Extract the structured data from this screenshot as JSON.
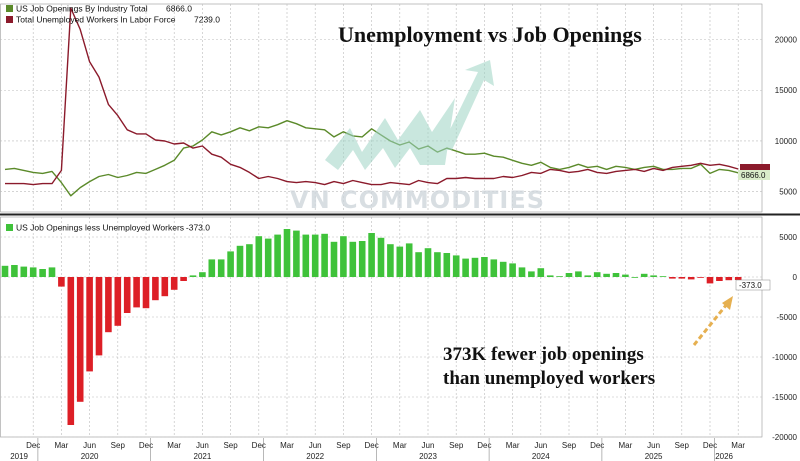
{
  "chart_data": [
    {
      "type": "line",
      "title": "Unemployment vs Job Openings",
      "ylim": [
        3000,
        23500
      ],
      "yticks": [
        5000,
        10000,
        15000,
        20000
      ],
      "grid": true,
      "legend_position": "top-left",
      "series": [
        {
          "name": "US Job Openings By Industry Total",
          "legend_value": "6866.0",
          "color": "#5b8a2a",
          "x": [
            "2019-09",
            "2019-10",
            "2019-11",
            "2019-12",
            "2020-01",
            "2020-02",
            "2020-03",
            "2020-04",
            "2020-05",
            "2020-06",
            "2020-07",
            "2020-08",
            "2020-09",
            "2020-10",
            "2020-11",
            "2020-12",
            "2021-01",
            "2021-02",
            "2021-03",
            "2021-04",
            "2021-05",
            "2021-06",
            "2021-07",
            "2021-08",
            "2021-09",
            "2021-10",
            "2021-11",
            "2021-12",
            "2022-01",
            "2022-02",
            "2022-03",
            "2022-04",
            "2022-05",
            "2022-06",
            "2022-07",
            "2022-08",
            "2022-09",
            "2022-10",
            "2022-11",
            "2022-12",
            "2023-01",
            "2023-02",
            "2023-03",
            "2023-04",
            "2023-05",
            "2023-06",
            "2023-07",
            "2023-08",
            "2023-09",
            "2023-10",
            "2023-11",
            "2023-12",
            "2024-01",
            "2024-02",
            "2024-03",
            "2024-04",
            "2024-05",
            "2024-06",
            "2024-07",
            "2024-08",
            "2024-09",
            "2024-10",
            "2024-11",
            "2024-12",
            "2025-01",
            "2025-02",
            "2025-03",
            "2025-04",
            "2025-05",
            "2025-06",
            "2025-07",
            "2025-08",
            "2025-09",
            "2025-10",
            "2025-11",
            "2025-12",
            "2026-01",
            "2026-02",
            "2026-03"
          ],
          "values": [
            7200,
            7300,
            7100,
            6900,
            6800,
            7000,
            5900,
            4600,
            5400,
            6000,
            6500,
            6700,
            6400,
            6600,
            6900,
            6800,
            7200,
            7600,
            8100,
            9300,
            9500,
            10100,
            10900,
            10600,
            10900,
            11300,
            11000,
            11400,
            11300,
            11600,
            12000,
            11700,
            11300,
            11200,
            11100,
            10400,
            10900,
            10500,
            10400,
            11200,
            10600,
            10000,
            9600,
            9900,
            9200,
            9500,
            8900,
            9300,
            9000,
            8700,
            8700,
            8800,
            8500,
            8400,
            8100,
            7800,
            7600,
            7900,
            7400,
            7200,
            7400,
            7700,
            7400,
            7500,
            7200,
            7500,
            7400,
            7200,
            7400,
            7500,
            7200,
            7200,
            7300,
            7300,
            7700,
            6800,
            7200,
            7100,
            6866
          ]
        },
        {
          "name": "Total Unemployed Workers In Labor Force",
          "legend_value": "7239.0",
          "color": "#8b1a2b",
          "x": [
            "2019-09",
            "2019-10",
            "2019-11",
            "2019-12",
            "2020-01",
            "2020-02",
            "2020-03",
            "2020-04",
            "2020-05",
            "2020-06",
            "2020-07",
            "2020-08",
            "2020-09",
            "2020-10",
            "2020-11",
            "2020-12",
            "2021-01",
            "2021-02",
            "2021-03",
            "2021-04",
            "2021-05",
            "2021-06",
            "2021-07",
            "2021-08",
            "2021-09",
            "2021-10",
            "2021-11",
            "2021-12",
            "2022-01",
            "2022-02",
            "2022-03",
            "2022-04",
            "2022-05",
            "2022-06",
            "2022-07",
            "2022-08",
            "2022-09",
            "2022-10",
            "2022-11",
            "2022-12",
            "2023-01",
            "2023-02",
            "2023-03",
            "2023-04",
            "2023-05",
            "2023-06",
            "2023-07",
            "2023-08",
            "2023-09",
            "2023-10",
            "2023-11",
            "2023-12",
            "2024-01",
            "2024-02",
            "2024-03",
            "2024-04",
            "2024-05",
            "2024-06",
            "2024-07",
            "2024-08",
            "2024-09",
            "2024-10",
            "2024-11",
            "2024-12",
            "2025-01",
            "2025-02",
            "2025-03",
            "2025-04",
            "2025-05",
            "2025-06",
            "2025-07",
            "2025-08",
            "2025-09",
            "2025-10",
            "2025-11",
            "2025-12",
            "2026-01",
            "2026-02",
            "2026-03"
          ],
          "values": [
            5800,
            5800,
            5800,
            5700,
            5800,
            5800,
            7100,
            23100,
            21000,
            17800,
            16300,
            13600,
            12500,
            11100,
            10700,
            10700,
            10100,
            10000,
            9700,
            9800,
            9300,
            9500,
            8700,
            8400,
            7700,
            7400,
            6900,
            6300,
            6500,
            6300,
            6000,
            5900,
            6000,
            5900,
            5700,
            6000,
            5800,
            6100,
            5900,
            5700,
            5700,
            5900,
            5800,
            5700,
            6100,
            5900,
            5800,
            6300,
            6300,
            6400,
            6300,
            6300,
            6300,
            6500,
            6400,
            6600,
            6900,
            6800,
            7200,
            7100,
            6900,
            7000,
            7200,
            6900,
            6800,
            7000,
            7100,
            7200,
            7000,
            7300,
            7100,
            7400,
            7500,
            7600,
            7800,
            7600,
            7700,
            7500,
            7239
          ]
        }
      ]
    },
    {
      "type": "bar",
      "title": "",
      "ylim": [
        -20000,
        7500
      ],
      "yticks": [
        5000,
        0,
        -5000,
        -10000,
        -15000,
        -20000
      ],
      "grid": true,
      "legend_position": "top-left",
      "positive_color": "#3fc23a",
      "negative_color": "#dd1f26",
      "series": [
        {
          "name": "US Job Openings less Unemployed Workers",
          "legend_value": "-373.0",
          "x": [
            "2019-09",
            "2019-10",
            "2019-11",
            "2019-12",
            "2020-01",
            "2020-02",
            "2020-03",
            "2020-04",
            "2020-05",
            "2020-06",
            "2020-07",
            "2020-08",
            "2020-09",
            "2020-10",
            "2020-11",
            "2020-12",
            "2021-01",
            "2021-02",
            "2021-03",
            "2021-04",
            "2021-05",
            "2021-06",
            "2021-07",
            "2021-08",
            "2021-09",
            "2021-10",
            "2021-11",
            "2021-12",
            "2022-01",
            "2022-02",
            "2022-03",
            "2022-04",
            "2022-05",
            "2022-06",
            "2022-07",
            "2022-08",
            "2022-09",
            "2022-10",
            "2022-11",
            "2022-12",
            "2023-01",
            "2023-02",
            "2023-03",
            "2023-04",
            "2023-05",
            "2023-06",
            "2023-07",
            "2023-08",
            "2023-09",
            "2023-10",
            "2023-11",
            "2023-12",
            "2024-01",
            "2024-02",
            "2024-03",
            "2024-04",
            "2024-05",
            "2024-06",
            "2024-07",
            "2024-08",
            "2024-09",
            "2024-10",
            "2024-11",
            "2024-12",
            "2025-01",
            "2025-02",
            "2025-03",
            "2025-04",
            "2025-05",
            "2025-06",
            "2025-07",
            "2025-08",
            "2025-09",
            "2025-10",
            "2025-11",
            "2025-12",
            "2026-01",
            "2026-02",
            "2026-03"
          ],
          "values": [
            1400,
            1500,
            1300,
            1200,
            1000,
            1200,
            -1200,
            -18500,
            -15600,
            -11800,
            -9800,
            -6900,
            -6100,
            -4500,
            -3800,
            -3900,
            -2900,
            -2400,
            -1600,
            -500,
            200,
            600,
            2200,
            2200,
            3200,
            3900,
            4100,
            5100,
            4800,
            5300,
            6000,
            5800,
            5300,
            5300,
            5400,
            4400,
            5100,
            4400,
            4500,
            5500,
            4900,
            4100,
            3800,
            4200,
            3100,
            3600,
            3100,
            3000,
            2700,
            2300,
            2400,
            2500,
            2200,
            1900,
            1700,
            1200,
            700,
            1100,
            200,
            100,
            500,
            700,
            200,
            600,
            400,
            500,
            300,
            0,
            400,
            200,
            100,
            -200,
            -200,
            -300,
            -100,
            -800,
            -500,
            -400,
            -373
          ]
        }
      ]
    }
  ],
  "x_axis": {
    "month_labels": [
      "Dec",
      "Mar",
      "Jun",
      "Sep",
      "Dec",
      "Mar",
      "Jun",
      "Sep",
      "Dec",
      "Mar",
      "Jun",
      "Sep",
      "Dec",
      "Mar",
      "Jun",
      "Sep",
      "Dec",
      "Mar",
      "Jun",
      "Sep",
      "Dec",
      "Mar",
      "Jun",
      "Sep",
      "Dec",
      "Mar"
    ],
    "year_labels": [
      "2019",
      "2020",
      "2021",
      "2022",
      "2023",
      "2024",
      "2025",
      "2026"
    ]
  },
  "annotation": {
    "line1": "373K fewer job openings",
    "line2": "than unemployed workers"
  },
  "last_value_tags": {
    "top_green": "6866.0",
    "bottom": "-373.0"
  },
  "watermark": "VN COMMODITIES",
  "colors": {
    "green_line": "#5b8a2a",
    "red_line": "#8b1a2b",
    "bar_positive": "#3fc23a",
    "bar_negative": "#dd1f26",
    "tag_green_bg": "#d9ecc9",
    "tag_red_bg": "#8b1a2b",
    "annotation_arrow": "#e6b050",
    "watermark_arrow": "#9ed4c4"
  }
}
